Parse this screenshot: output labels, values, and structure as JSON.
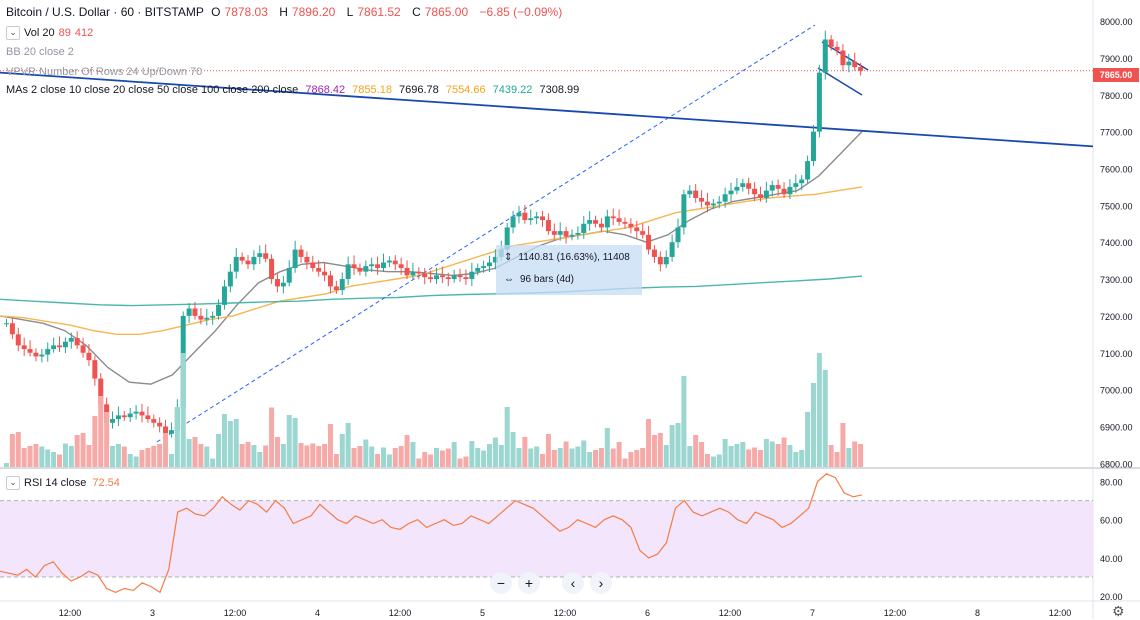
{
  "header": {
    "symbol": "Bitcoin / U.S. Dollar · 60 · BITSTAMP",
    "o_label": "O",
    "o_value": "7878.03",
    "h_label": "H",
    "h_value": "7896.20",
    "l_label": "L",
    "l_value": "7861.52",
    "c_label": "C",
    "c_value": "7865.00",
    "change": "−6.85 (−0.09%)"
  },
  "indicators": {
    "vol_label": "Vol 20",
    "vol_v1": "89",
    "vol_v2": "412",
    "bb_label": "BB 20 close 2",
    "vpvr_label": "VPVR Number Of Rows 24 Up/Down 70",
    "mas_label": "MAs 2 close 10 close 20 close 50 close 100 close 200 close",
    "mas_values": [
      {
        "value": "7868.42",
        "color": "#9c27b0"
      },
      {
        "value": "7855.18",
        "color": "#f7a21b"
      },
      {
        "value": "7696.78",
        "color": "#131722"
      },
      {
        "value": "7554.66",
        "color": "#f7a21b"
      },
      {
        "value": "7439.22",
        "color": "#26a69a"
      },
      {
        "value": "7308.99",
        "color": "#131722"
      }
    ],
    "rsi_label": "RSI 14 close",
    "rsi_value": "72.54"
  },
  "measure": {
    "price_range": "1140.81 (16.63%), 11408",
    "bars": "96 bars (4d)"
  },
  "last_price_tag": "7865.00",
  "controls": {
    "zoom_out": "−",
    "zoom_in": "+",
    "prev": "‹",
    "next": "›",
    "settings_icon": "gear-icon"
  },
  "colors": {
    "up": "#26a69a",
    "down": "#ef5350",
    "ma_gray": "#8c8c8c",
    "ma_orange": "#f7b651",
    "ma_teal": "#4db6ac",
    "trend_blue": "#1848b0",
    "rsi": "#f57c44",
    "rsi_band": "#f3e5fc"
  },
  "chart_data": [
    {
      "type": "candlestick",
      "title": "Bitcoin / U.S. Dollar · 60 · BITSTAMP",
      "x_ticks": [
        "12:00",
        "3",
        "12:00",
        "4",
        "12:00",
        "5",
        "12:00",
        "6",
        "12:00",
        "7",
        "12:00",
        "8",
        "12:00"
      ],
      "y_ticks": [
        "6800.00",
        "6900.00",
        "7000.00",
        "7100.00",
        "7200.00",
        "7300.00",
        "7400.00",
        "7500.00",
        "7600.00",
        "7700.00",
        "7800.00",
        "7900.00",
        "8000.00"
      ],
      "ylim": [
        6790,
        8030
      ],
      "close_series": [
        7180,
        7150,
        7120,
        7110,
        7100,
        7090,
        7095,
        7110,
        7120,
        7115,
        7130,
        7140,
        7120,
        7100,
        7080,
        7030,
        6960,
        6910,
        6920,
        6930,
        6925,
        6935,
        6940,
        6930,
        6920,
        6910,
        6900,
        6880,
        6890,
        6950,
        7200,
        7220,
        7200,
        7190,
        7195,
        7200,
        7230,
        7280,
        7320,
        7360,
        7350,
        7340,
        7360,
        7370,
        7355,
        7300,
        7280,
        7290,
        7330,
        7380,
        7360,
        7345,
        7330,
        7320,
        7310,
        7280,
        7270,
        7300,
        7340,
        7330,
        7320,
        7335,
        7340,
        7330,
        7345,
        7350,
        7340,
        7330,
        7310,
        7320,
        7315,
        7305,
        7300,
        7310,
        7305,
        7300,
        7310,
        7305,
        7300,
        7320,
        7330,
        7335,
        7345,
        7360,
        7380,
        7440,
        7470,
        7480,
        7460,
        7465,
        7470,
        7460,
        7430,
        7420,
        7430,
        7415,
        7420,
        7425,
        7450,
        7460,
        7450,
        7440,
        7470,
        7465,
        7455,
        7450,
        7440,
        7430,
        7420,
        7380,
        7360,
        7340,
        7360,
        7400,
        7440,
        7530,
        7540,
        7520,
        7510,
        7500,
        7505,
        7510,
        7530,
        7540,
        7550,
        7560,
        7545,
        7530,
        7520,
        7540,
        7555,
        7545,
        7530,
        7550,
        7560,
        7570,
        7620,
        7700,
        7860,
        7950,
        7930,
        7920,
        7880,
        7890,
        7875,
        7865
      ],
      "ma_series": [
        {
          "name": "MA 20",
          "color": "#8c8c8c",
          "values": [
            7200,
            7190,
            7180,
            7160,
            7120,
            7060,
            7020,
            7015,
            7040,
            7100,
            7160,
            7230,
            7290,
            7320,
            7340,
            7345,
            7335,
            7325,
            7320,
            7320,
            7315,
            7310,
            7315,
            7330,
            7360,
            7390,
            7410,
            7420,
            7430,
            7420,
            7400,
            7420,
            7460,
            7490,
            7510,
            7520,
            7530,
            7540,
            7580,
            7640,
            7700
          ]
        },
        {
          "name": "MA 50",
          "color": "#f7b651",
          "values": [
            7200,
            7195,
            7185,
            7175,
            7160,
            7150,
            7150,
            7160,
            7175,
            7190,
            7200,
            7220,
            7240,
            7250,
            7260,
            7280,
            7290,
            7300,
            7310,
            7330,
            7350,
            7370,
            7390,
            7400,
            7410,
            7420,
            7430,
            7440,
            7460,
            7480,
            7490,
            7500,
            7510,
            7520,
            7525,
            7530,
            7540,
            7550
          ]
        },
        {
          "name": "MA 200",
          "color": "#4db6ac",
          "values": [
            7245,
            7240,
            7235,
            7230,
            7228,
            7230,
            7232,
            7235,
            7238,
            7240,
            7245,
            7248,
            7250,
            7255,
            7258,
            7260,
            7262,
            7265,
            7270,
            7275,
            7278,
            7280,
            7285,
            7290,
            7295,
            7300,
            7308
          ]
        }
      ],
      "trendline": {
        "color": "#1848b0",
        "from": 7860,
        "to": 7660
      }
    },
    {
      "type": "line",
      "title": "RSI 14 close",
      "y_ticks": [
        "20.00",
        "40.00",
        "60.00",
        "80.00"
      ],
      "ylim": [
        18,
        86
      ],
      "band": [
        30,
        70
      ],
      "values": [
        33,
        32,
        31,
        34,
        30,
        36,
        38,
        32,
        28,
        30,
        33,
        31,
        24,
        22,
        24,
        23,
        27,
        25,
        22,
        34,
        64,
        66,
        63,
        62,
        66,
        72,
        68,
        65,
        70,
        68,
        64,
        70,
        66,
        58,
        60,
        62,
        68,
        64,
        60,
        58,
        62,
        60,
        58,
        60,
        56,
        55,
        58,
        60,
        56,
        58,
        60,
        57,
        58,
        62,
        60,
        58,
        62,
        66,
        70,
        68,
        66,
        62,
        58,
        54,
        56,
        60,
        58,
        56,
        60,
        62,
        60,
        56,
        44,
        40,
        42,
        48,
        66,
        70,
        64,
        62,
        64,
        66,
        64,
        60,
        58,
        64,
        62,
        60,
        56,
        58,
        62,
        66,
        80,
        84,
        82,
        74,
        72,
        73
      ]
    }
  ]
}
